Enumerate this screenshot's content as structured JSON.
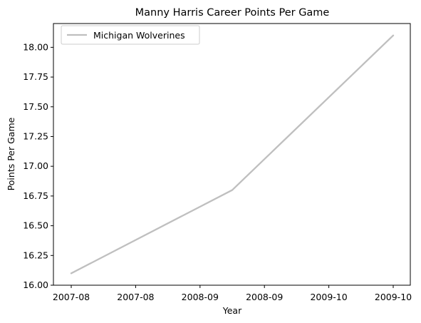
{
  "chart_data": {
    "type": "line",
    "title": "Manny Harris Career Points Per Game",
    "xlabel": "Year",
    "ylabel": "Points Per Game",
    "x": [
      "2007-08",
      "2008-09",
      "2009-10"
    ],
    "series": [
      {
        "name": "Michigan Wolverines",
        "values": [
          16.1,
          16.8,
          18.1
        ],
        "color": "#bfbfbf"
      }
    ],
    "x_tick_labels": [
      "2007-08",
      "2007-08",
      "2008-09",
      "2008-09",
      "2009-10",
      "2009-10"
    ],
    "y_ticks": [
      16.0,
      16.25,
      16.5,
      16.75,
      17.0,
      17.25,
      17.5,
      17.75,
      18.0
    ],
    "y_tick_labels": [
      "16.00",
      "16.25",
      "16.50",
      "16.75",
      "17.00",
      "17.25",
      "17.50",
      "17.75",
      "18.00"
    ],
    "ylim": [
      16.0,
      18.2
    ],
    "grid": false,
    "legend_position": "top-left"
  }
}
